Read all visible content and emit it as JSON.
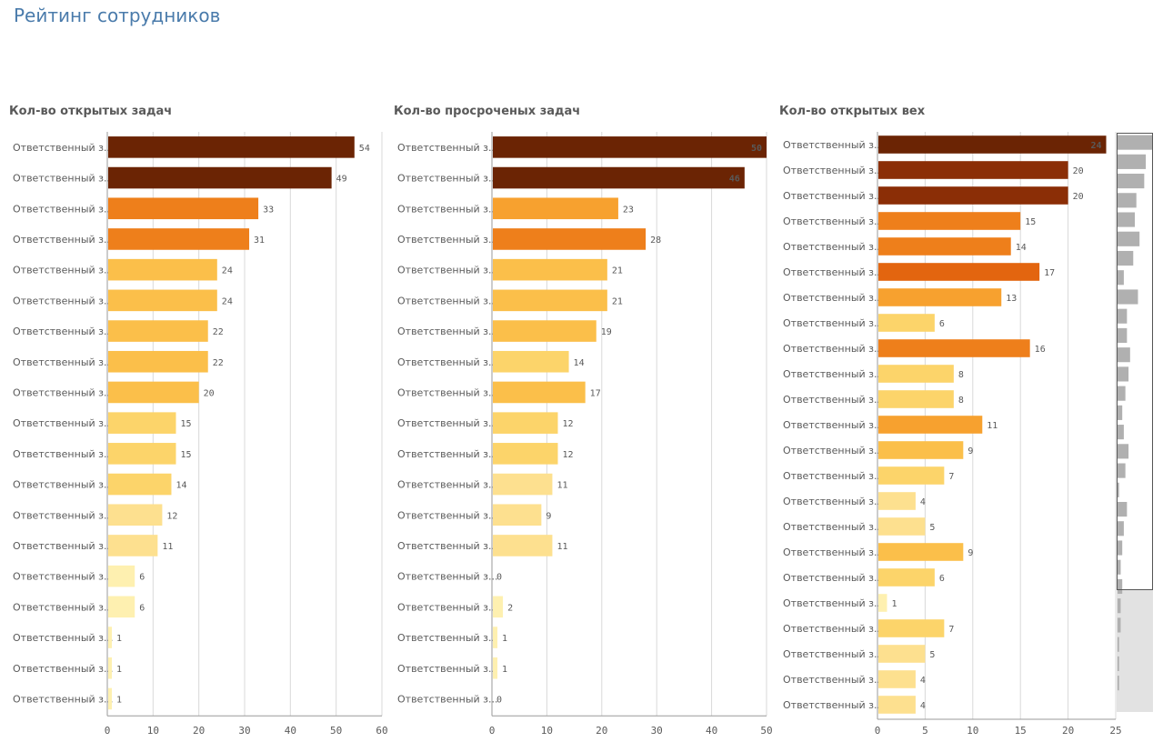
{
  "page": {
    "title": "Рейтинг сотрудников"
  },
  "chart_data": [
    {
      "type": "bar",
      "orientation": "horizontal",
      "title": "Кол-во открытых задач",
      "category_label": "Ответственный з...",
      "values": [
        54,
        49,
        33,
        31,
        24,
        24,
        22,
        22,
        20,
        15,
        15,
        14,
        12,
        11,
        6,
        6,
        1,
        1,
        1
      ],
      "xlim": [
        0,
        60
      ],
      "ticks": [
        0,
        10,
        20,
        30,
        40,
        50,
        60
      ],
      "grid": true
    },
    {
      "type": "bar",
      "orientation": "horizontal",
      "title": "Кол-во просроченых задач",
      "category_label": "Ответственный з...",
      "values": [
        50,
        46,
        23,
        28,
        21,
        21,
        19,
        14,
        17,
        12,
        12,
        11,
        9,
        11,
        0,
        2,
        1,
        1,
        0
      ],
      "xlim": [
        0,
        50
      ],
      "ticks": [
        0,
        10,
        20,
        30,
        40,
        50
      ],
      "grid": true
    },
    {
      "type": "bar",
      "orientation": "horizontal",
      "title": "Кол-во открытых вех",
      "category_label": "Ответственный з...",
      "values": [
        24,
        20,
        20,
        15,
        14,
        17,
        13,
        6,
        16,
        8,
        8,
        11,
        9,
        7,
        4,
        5,
        9,
        6,
        1,
        7,
        5,
        4,
        4
      ],
      "xlim": [
        0,
        25
      ],
      "ticks": [
        0,
        5,
        10,
        15,
        20,
        25
      ],
      "grid": true,
      "minimap_values": [
        22,
        18,
        17,
        12,
        11,
        14,
        10,
        4,
        13,
        6,
        6,
        8,
        7,
        5,
        3,
        4,
        7,
        5,
        1,
        6,
        4,
        3,
        2,
        3,
        2,
        2,
        1,
        1,
        1,
        0
      ]
    }
  ],
  "colors": {
    "title": "#4a7bab",
    "bar_ramp": [
      "#6b2404",
      "#8b2e06",
      "#e3650f",
      "#ee7f1b",
      "#f7a12f",
      "#fbbf4a",
      "#fcd46a",
      "#fde08f",
      "#fef0b0"
    ],
    "minimap_bar": "#b0b0b0",
    "minimap_shade": "#e2e2e2",
    "axis": "#999999",
    "grid": "#d9d9d9"
  }
}
